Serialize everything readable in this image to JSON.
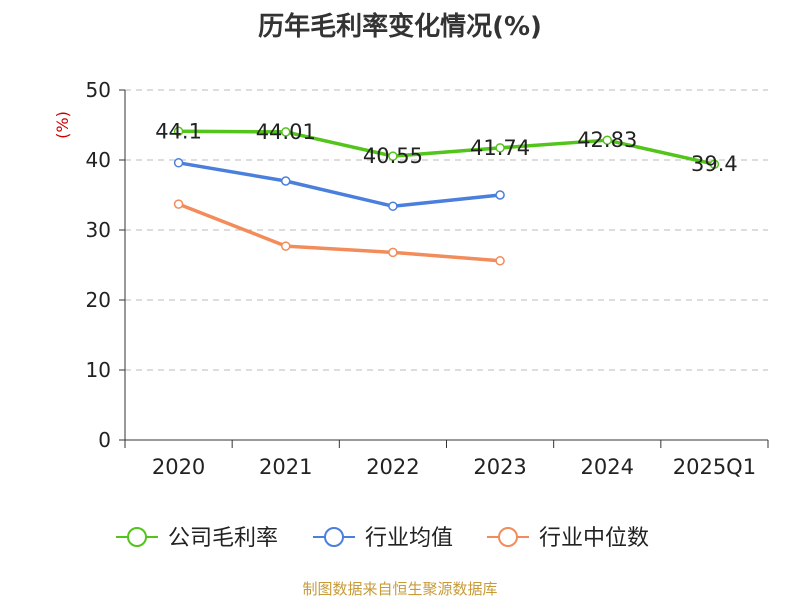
{
  "chart_data": {
    "type": "line",
    "title": "历年毛利率变化情况(%)",
    "ylabel": "(%)",
    "xlabel": "",
    "categories": [
      "2020",
      "2021",
      "2022",
      "2023",
      "2024",
      "2025Q1"
    ],
    "ylim": [
      0,
      50
    ],
    "yticks": [
      0,
      10,
      20,
      30,
      40,
      50
    ],
    "grid": true,
    "legend_position": "bottom",
    "series": [
      {
        "name": "公司毛利率",
        "color": "#52c41a",
        "values": [
          44.1,
          44.01,
          40.55,
          41.74,
          42.83,
          39.4
        ],
        "labels": [
          "44.1",
          "44.01",
          "40.55",
          "41.74",
          "42.83",
          "39.4"
        ]
      },
      {
        "name": "行业均值",
        "color": "#4a7fdc",
        "values": [
          39.6,
          37.0,
          33.4,
          35.0,
          null,
          null
        ]
      },
      {
        "name": "行业中位数",
        "color": "#f28c5b",
        "values": [
          33.7,
          27.7,
          26.8,
          25.6,
          null,
          null
        ]
      }
    ]
  },
  "source": "制图数据来自恒生聚源数据库",
  "colors": {
    "axis": "#333333",
    "grid": "#bbbbbb",
    "ylabel": "#cc0000",
    "source": "#c79b3a"
  }
}
